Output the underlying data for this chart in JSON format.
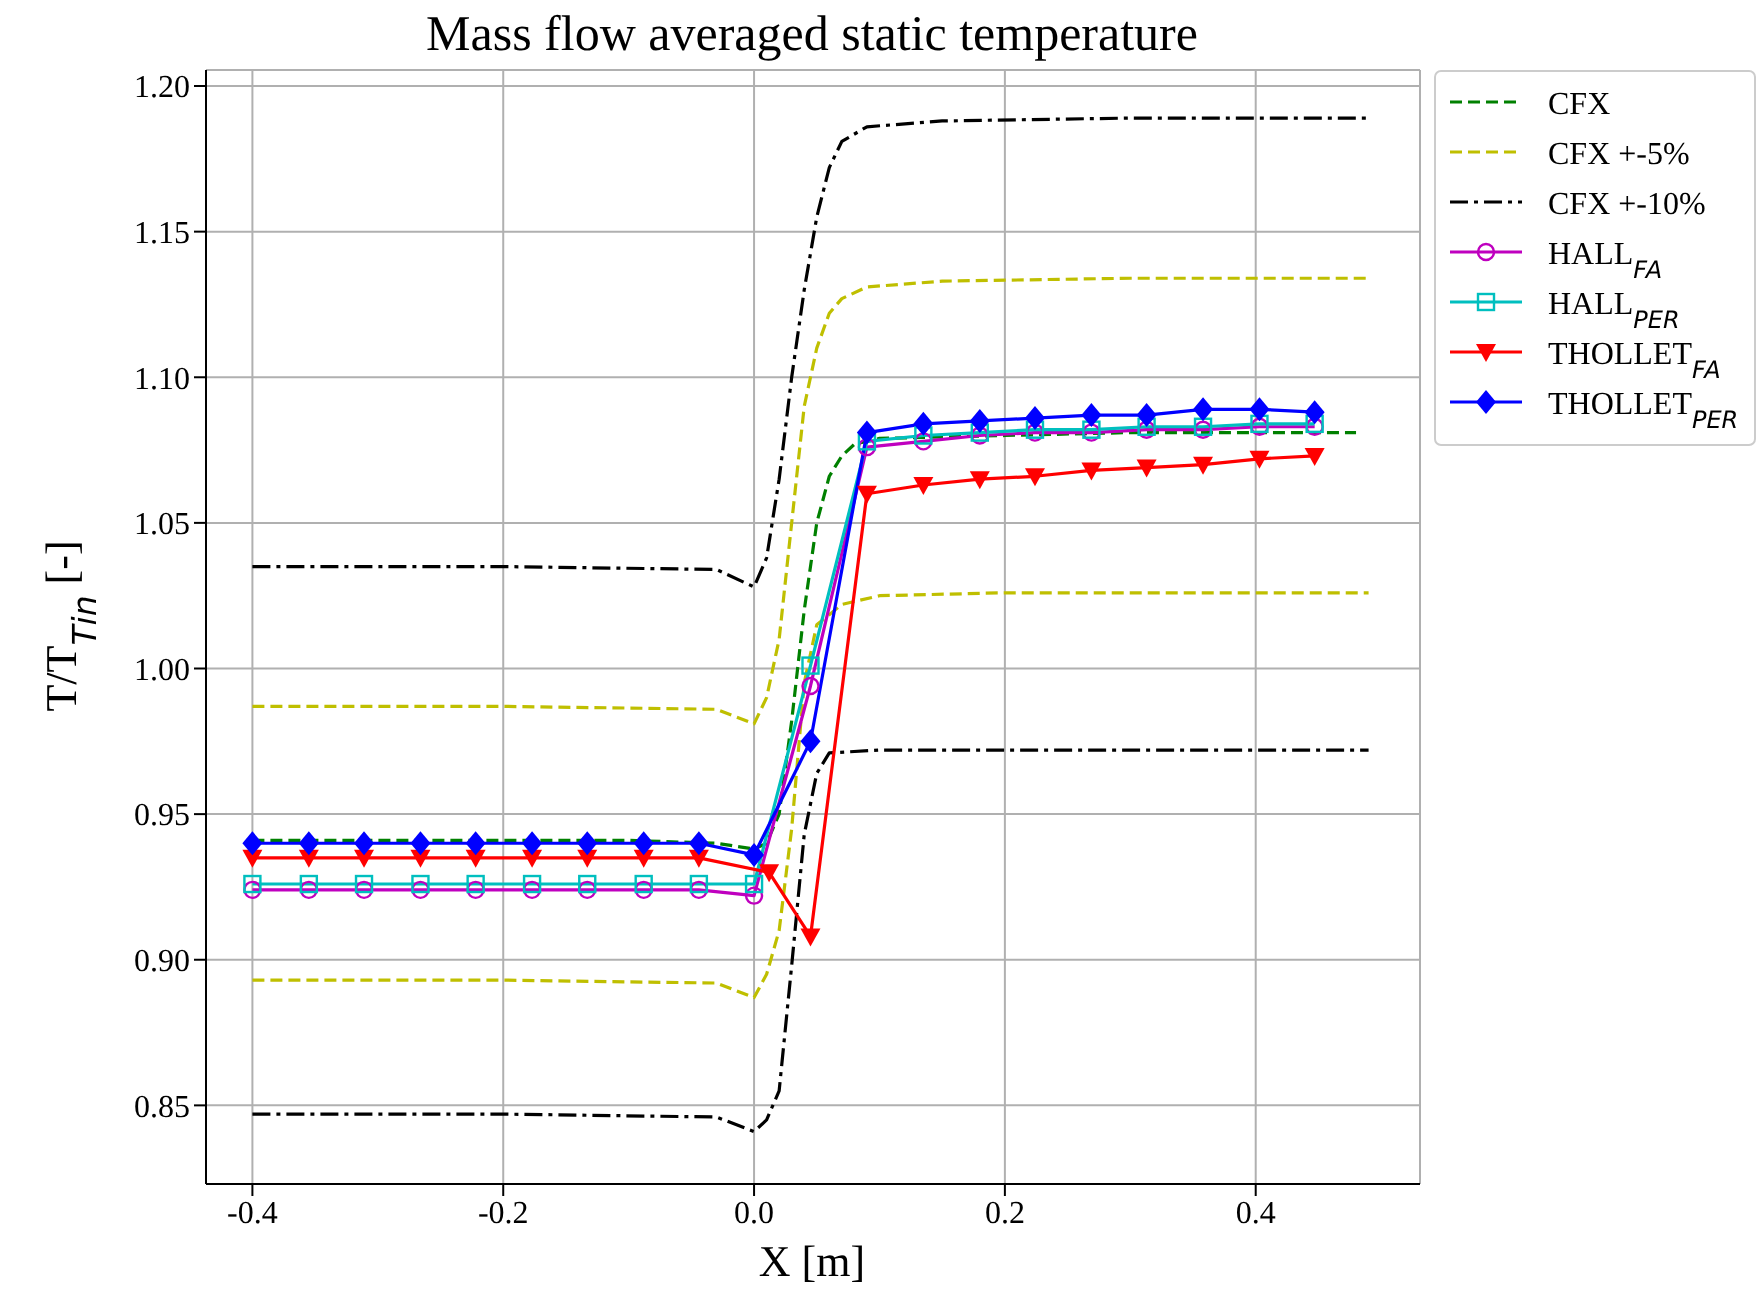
{
  "chart_data": {
    "type": "line",
    "title": "Mass flow averaged static temperature",
    "xlabel": "X [m]",
    "ylabel": "T/T$_{Tin}$ [-]",
    "xlim": [
      -0.437,
      0.531
    ],
    "xticks": [
      -0.4,
      -0.2,
      {
        "value": 0,
        "label": "0.0"
      },
      0.2,
      0.4
    ],
    "ylim": [
      0.823,
      1.2055
    ],
    "yticks": [
      0.85,
      {
        "value": 0.9,
        "label": "0.90"
      },
      0.95,
      {
        "value": 1.0,
        "label": "1.00"
      },
      1.05,
      {
        "value": 1.1,
        "label": "1.10"
      },
      1.15,
      {
        "value": 1.2,
        "label": "1.20"
      }
    ],
    "grid": true,
    "legend": "top right",
    "series": [
      {
        "name": "CFX",
        "color": "#008000",
        "line_style": "dashed",
        "marker": "none",
        "x": [
          -0.4,
          -0.3,
          -0.2,
          -0.1,
          -0.03,
          0.0,
          0.01,
          0.02,
          0.03,
          0.04,
          0.05,
          0.06,
          0.07,
          0.08,
          0.1,
          0.2,
          0.3,
          0.48
        ],
        "values": [
          0.941,
          0.941,
          0.941,
          0.941,
          0.94,
          0.938,
          0.94,
          0.95,
          0.982,
          1.02,
          1.05,
          1.066,
          1.073,
          1.077,
          1.079,
          1.08,
          1.081,
          1.081
        ]
      },
      {
        "name": "CFX +-5%",
        "color": "#bfbf00",
        "line_style": "dashed",
        "marker": "none",
        "x": [
          -0.4,
          -0.2,
          -0.03,
          0.0,
          0.01,
          0.02,
          0.03,
          0.04,
          0.05,
          0.06,
          0.07,
          0.09,
          0.15,
          0.3,
          0.49
        ],
        "values": [
          0.987,
          0.987,
          0.986,
          0.981,
          0.99,
          1.01,
          1.05,
          1.09,
          1.11,
          1.122,
          1.127,
          1.131,
          1.133,
          1.134,
          1.134
        ]
      },
      {
        "color": "#bfbf00",
        "line_style": "dashed",
        "marker": "none",
        "x": [
          -0.4,
          -0.2,
          -0.03,
          0.0,
          0.01,
          0.02,
          0.03,
          0.04,
          0.05,
          0.07,
          0.1,
          0.2,
          0.49
        ],
        "values": [
          0.893,
          0.893,
          0.892,
          0.887,
          0.895,
          0.91,
          0.945,
          0.995,
          1.015,
          1.022,
          1.025,
          1.026,
          1.026
        ]
      },
      {
        "name": "CFX +-10%",
        "color": "#000000",
        "line_style": "dashdot",
        "marker": "none",
        "x": [
          -0.4,
          -0.2,
          -0.03,
          0.0,
          0.01,
          0.02,
          0.03,
          0.04,
          0.05,
          0.06,
          0.07,
          0.09,
          0.15,
          0.3,
          0.49
        ],
        "values": [
          1.035,
          1.035,
          1.034,
          1.028,
          1.038,
          1.065,
          1.1,
          1.13,
          1.155,
          1.172,
          1.181,
          1.186,
          1.188,
          1.189,
          1.189
        ]
      },
      {
        "color": "#000000",
        "line_style": "dashdot",
        "marker": "none",
        "x": [
          -0.4,
          -0.2,
          -0.03,
          0.0,
          0.01,
          0.02,
          0.03,
          0.04,
          0.05,
          0.06,
          0.1,
          0.2,
          0.49
        ],
        "values": [
          0.847,
          0.847,
          0.846,
          0.841,
          0.845,
          0.855,
          0.898,
          0.943,
          0.964,
          0.971,
          0.972,
          0.972,
          0.972
        ]
      },
      {
        "name": "HALL$_{FA}$",
        "color": "#bf00bf",
        "line_style": "solid",
        "marker": "circle",
        "x": [
          -0.4,
          -0.355,
          -0.311,
          -0.266,
          -0.222,
          -0.177,
          -0.133,
          -0.088,
          -0.044,
          0.0,
          0.045,
          0.09,
          0.135,
          0.18,
          0.224,
          0.269,
          0.313,
          0.358,
          0.403,
          0.447
        ],
        "values": [
          0.924,
          0.924,
          0.924,
          0.924,
          0.924,
          0.924,
          0.924,
          0.924,
          0.924,
          0.922,
          0.994,
          1.076,
          1.078,
          1.08,
          1.081,
          1.081,
          1.082,
          1.082,
          1.083,
          1.083
        ]
      },
      {
        "name": "HALL$_{PER}$",
        "color": "#00bfbf",
        "line_style": "solid",
        "marker": "square",
        "x": [
          -0.4,
          -0.355,
          -0.311,
          -0.266,
          -0.222,
          -0.177,
          -0.133,
          -0.088,
          -0.044,
          0.0,
          0.045,
          0.09,
          0.135,
          0.18,
          0.224,
          0.269,
          0.313,
          0.358,
          0.403,
          0.447
        ],
        "values": [
          0.926,
          0.926,
          0.926,
          0.926,
          0.926,
          0.926,
          0.926,
          0.926,
          0.926,
          0.926,
          1.001,
          1.078,
          1.08,
          1.081,
          1.082,
          1.082,
          1.083,
          1.083,
          1.084,
          1.084
        ]
      },
      {
        "name": "THOLLET$_{FA}$",
        "color": "#ff0000",
        "line_style": "solid",
        "marker": "triangle",
        "x": [
          -0.4,
          -0.355,
          -0.311,
          -0.266,
          -0.222,
          -0.177,
          -0.133,
          -0.088,
          -0.044,
          0.012,
          0.045,
          0.09,
          0.135,
          0.18,
          0.224,
          0.269,
          0.313,
          0.358,
          0.403,
          0.447
        ],
        "values": [
          0.935,
          0.935,
          0.935,
          0.935,
          0.935,
          0.935,
          0.935,
          0.935,
          0.935,
          0.93,
          0.908,
          1.06,
          1.063,
          1.065,
          1.066,
          1.068,
          1.069,
          1.07,
          1.072,
          1.073
        ]
      },
      {
        "name": "THOLLET$_{PER}$",
        "color": "#0000ff",
        "line_style": "solid",
        "marker": "diamond",
        "x": [
          -0.4,
          -0.355,
          -0.311,
          -0.266,
          -0.222,
          -0.177,
          -0.133,
          -0.088,
          -0.044,
          0.0,
          0.045,
          0.09,
          0.135,
          0.18,
          0.224,
          0.269,
          0.313,
          0.358,
          0.403,
          0.447
        ],
        "values": [
          0.94,
          0.94,
          0.94,
          0.94,
          0.94,
          0.94,
          0.94,
          0.94,
          0.94,
          0.936,
          0.975,
          1.081,
          1.084,
          1.085,
          1.086,
          1.087,
          1.087,
          1.089,
          1.089,
          1.088
        ]
      }
    ]
  }
}
